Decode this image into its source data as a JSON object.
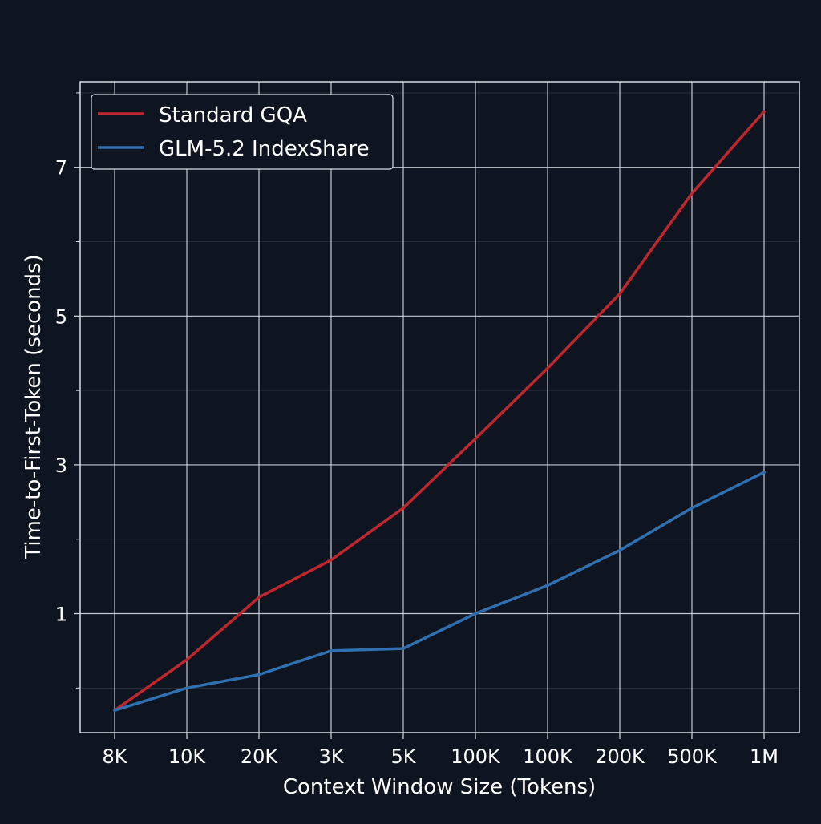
{
  "theme": {
    "background": "#0e1420",
    "grid_color": "#d8dce4",
    "text_color": "#ffffff"
  },
  "chart_data": {
    "type": "line",
    "title": "",
    "xlabel": "Context Window Size (Tokens)",
    "ylabel": "Time-to-First-Token (seconds)",
    "categories": [
      "8K",
      "10K",
      "20K",
      "3K",
      "5K",
      "100K",
      "100K",
      "200K",
      "500K",
      "1M"
    ],
    "y_ticks": [
      1,
      3,
      5,
      7
    ],
    "ylim": [
      -0.6,
      8.15
    ],
    "grid": true,
    "legend_position": "top-left",
    "series": [
      {
        "name": "Standard GQA",
        "color": "#c0262d",
        "values": [
          -0.3,
          0.38,
          1.22,
          1.72,
          2.42,
          3.35,
          4.3,
          5.3,
          6.65,
          7.75
        ]
      },
      {
        "name": "GLM-5.2 IndexShare",
        "color": "#3070b0",
        "values": [
          -0.3,
          0.0,
          0.18,
          0.5,
          0.53,
          1.0,
          1.38,
          1.85,
          2.42,
          2.9
        ]
      }
    ]
  }
}
